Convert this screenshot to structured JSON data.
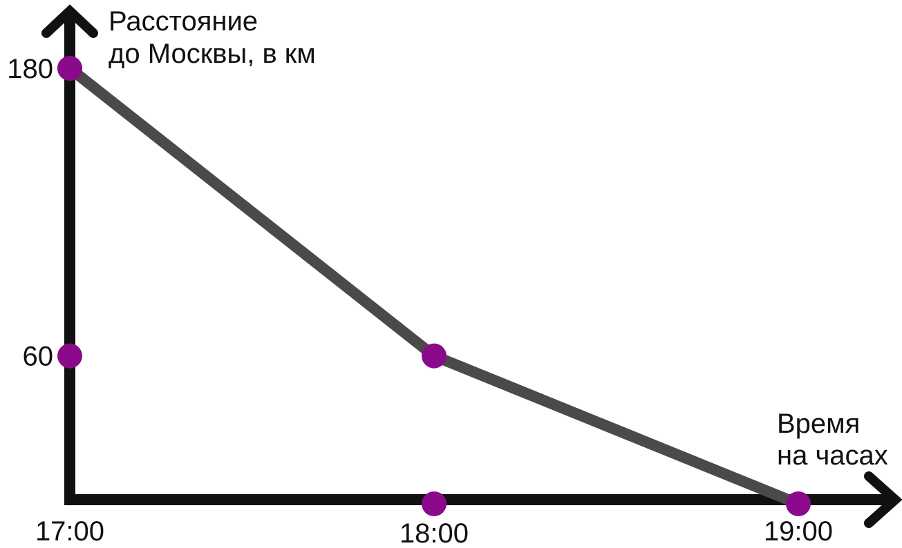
{
  "chart_data": {
    "type": "line",
    "ylabel": [
      "Расстояние",
      "до Москвы, в км"
    ],
    "xlabel": [
      "Время",
      "на часах"
    ],
    "x_ticks": [
      "17:00",
      "18:00",
      "19:00"
    ],
    "y_ticks": [
      {
        "value": 180,
        "label": "180"
      },
      {
        "value": 60,
        "label": "60"
      }
    ],
    "x_tick_markers": [
      "18:00"
    ],
    "series": [
      {
        "points": [
          {
            "x": "17:00",
            "y": 180
          },
          {
            "x": "18:00",
            "y": 60
          },
          {
            "x": "19:00",
            "y": 0
          }
        ]
      }
    ],
    "grid": false,
    "colors": {
      "axis": "#111111",
      "line": "#4a4a4a",
      "marker": "#8b0a8b"
    }
  }
}
